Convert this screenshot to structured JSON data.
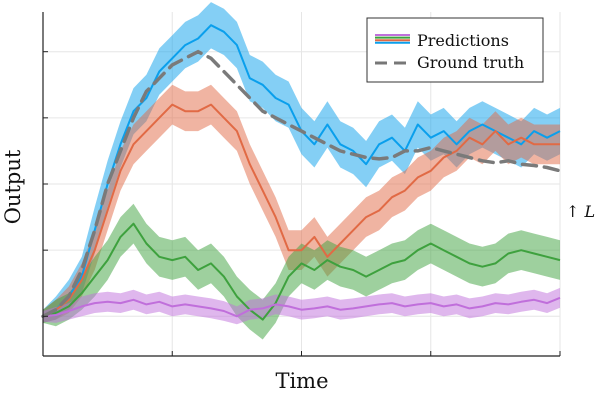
{
  "chart_data": {
    "type": "line",
    "xlabel": "Time",
    "ylabel": "Output",
    "xlim": [
      0,
      40
    ],
    "ylim": [
      -0.6,
      4.6
    ],
    "x_ticks": [
      0,
      10,
      20,
      30,
      40
    ],
    "y_ticks": [
      0,
      1,
      2,
      3,
      4
    ],
    "tick_labels_shown": false,
    "grid": true,
    "legend_position": "top-right",
    "legend": [
      {
        "label": "Predictions",
        "swatch": "multicolor-solid",
        "colors": [
          "#c06fdb",
          "#3ea13e",
          "#e16a45",
          "#0a9fec"
        ]
      },
      {
        "label": "Ground truth",
        "swatch": "dashed",
        "colors": [
          "#777777"
        ]
      }
    ],
    "annotation": {
      "text": "↑ L",
      "side": "right"
    },
    "x": [
      0,
      1,
      2,
      3,
      4,
      5,
      6,
      7,
      8,
      9,
      10,
      11,
      12,
      13,
      14,
      15,
      16,
      17,
      18,
      19,
      20,
      21,
      22,
      23,
      24,
      25,
      26,
      27,
      28,
      29,
      30,
      31,
      32,
      33,
      34,
      35,
      36,
      37,
      38,
      39,
      40
    ],
    "ground_truth": {
      "color": "#7a7a7a",
      "values": [
        0.0,
        0.1,
        0.3,
        0.7,
        1.3,
        2.0,
        2.5,
        3.0,
        3.4,
        3.6,
        3.8,
        3.9,
        4.0,
        3.9,
        3.7,
        3.5,
        3.3,
        3.1,
        3.0,
        2.9,
        2.8,
        2.7,
        2.6,
        2.5,
        2.45,
        2.4,
        2.38,
        2.4,
        2.5,
        2.5,
        2.55,
        2.5,
        2.45,
        2.4,
        2.35,
        2.32,
        2.35,
        2.3,
        2.28,
        2.25,
        2.2
      ]
    },
    "series": [
      {
        "color": "#0a9fec",
        "mean": [
          0.0,
          0.1,
          0.3,
          0.6,
          1.3,
          2.0,
          2.6,
          3.1,
          3.3,
          3.7,
          3.9,
          4.1,
          4.2,
          4.4,
          4.3,
          4.1,
          3.6,
          3.5,
          3.3,
          3.2,
          2.8,
          2.6,
          2.9,
          2.6,
          2.5,
          2.3,
          2.6,
          2.7,
          2.5,
          2.9,
          2.7,
          2.8,
          2.6,
          2.8,
          2.9,
          2.8,
          2.7,
          2.6,
          2.8,
          2.7,
          2.8
        ],
        "lower": [
          -0.1,
          -0.05,
          0.1,
          0.35,
          0.95,
          1.65,
          2.25,
          2.75,
          2.95,
          3.35,
          3.55,
          3.75,
          3.85,
          4.05,
          3.95,
          3.75,
          3.25,
          3.15,
          2.95,
          2.85,
          2.45,
          2.25,
          2.55,
          2.25,
          2.15,
          1.95,
          2.25,
          2.35,
          2.15,
          2.55,
          2.35,
          2.45,
          2.25,
          2.45,
          2.55,
          2.45,
          2.35,
          2.25,
          2.45,
          2.35,
          2.45
        ],
        "upper": [
          0.1,
          0.3,
          0.55,
          0.9,
          1.65,
          2.35,
          2.95,
          3.45,
          3.65,
          4.05,
          4.25,
          4.45,
          4.55,
          4.75,
          4.65,
          4.45,
          3.95,
          3.85,
          3.65,
          3.55,
          3.15,
          2.95,
          3.25,
          2.95,
          2.85,
          2.65,
          2.95,
          3.05,
          2.85,
          3.25,
          3.05,
          3.15,
          2.95,
          3.15,
          3.25,
          3.15,
          3.05,
          2.95,
          3.15,
          3.05,
          3.15
        ]
      },
      {
        "color": "#e16a45",
        "mean": [
          0.0,
          0.1,
          0.25,
          0.55,
          1.0,
          1.6,
          2.2,
          2.6,
          2.8,
          3.0,
          3.2,
          3.1,
          3.1,
          3.2,
          3.0,
          2.8,
          2.3,
          1.9,
          1.5,
          1.0,
          1.0,
          1.2,
          0.9,
          1.1,
          1.3,
          1.5,
          1.6,
          1.8,
          1.9,
          2.1,
          2.2,
          2.4,
          2.5,
          2.7,
          2.6,
          2.8,
          2.6,
          2.7,
          2.6,
          2.6,
          2.6
        ],
        "lower": [
          -0.1,
          -0.05,
          0.05,
          0.3,
          0.7,
          1.3,
          1.9,
          2.3,
          2.5,
          2.7,
          2.9,
          2.8,
          2.8,
          2.9,
          2.7,
          2.5,
          2.0,
          1.6,
          1.2,
          0.7,
          0.7,
          0.9,
          0.6,
          0.8,
          1.0,
          1.2,
          1.3,
          1.5,
          1.6,
          1.8,
          1.9,
          2.1,
          2.2,
          2.4,
          2.3,
          2.5,
          2.3,
          2.4,
          2.3,
          2.3,
          2.3
        ],
        "upper": [
          0.1,
          0.25,
          0.45,
          0.8,
          1.3,
          1.9,
          2.5,
          2.9,
          3.1,
          3.3,
          3.5,
          3.4,
          3.4,
          3.5,
          3.3,
          3.1,
          2.6,
          2.2,
          1.8,
          1.3,
          1.3,
          1.5,
          1.2,
          1.4,
          1.6,
          1.8,
          1.9,
          2.1,
          2.2,
          2.4,
          2.5,
          2.7,
          2.8,
          3.0,
          2.9,
          3.1,
          2.9,
          3.0,
          2.9,
          2.9,
          2.9
        ]
      },
      {
        "color": "#3ea13e",
        "mean": [
          0.0,
          0.05,
          0.15,
          0.35,
          0.6,
          0.85,
          1.2,
          1.4,
          1.1,
          0.9,
          0.85,
          0.9,
          0.7,
          0.8,
          0.6,
          0.3,
          0.1,
          -0.05,
          0.2,
          0.6,
          0.8,
          0.7,
          0.85,
          0.75,
          0.7,
          0.6,
          0.7,
          0.8,
          0.85,
          1.0,
          1.1,
          1.0,
          0.9,
          0.8,
          0.75,
          0.8,
          0.95,
          1.0,
          0.95,
          0.9,
          0.85
        ],
        "lower": [
          -0.1,
          -0.15,
          -0.05,
          0.1,
          0.3,
          0.55,
          0.9,
          1.1,
          0.8,
          0.6,
          0.55,
          0.6,
          0.4,
          0.5,
          0.3,
          0.0,
          -0.2,
          -0.35,
          -0.1,
          0.3,
          0.5,
          0.4,
          0.55,
          0.45,
          0.4,
          0.3,
          0.4,
          0.5,
          0.55,
          0.7,
          0.8,
          0.7,
          0.6,
          0.5,
          0.45,
          0.5,
          0.65,
          0.7,
          0.65,
          0.6,
          0.55
        ],
        "upper": [
          0.1,
          0.25,
          0.35,
          0.6,
          0.9,
          1.15,
          1.5,
          1.7,
          1.4,
          1.2,
          1.15,
          1.2,
          1.0,
          1.1,
          0.9,
          0.6,
          0.4,
          0.25,
          0.5,
          0.9,
          1.1,
          1.0,
          1.15,
          1.05,
          1.0,
          0.9,
          1.0,
          1.1,
          1.15,
          1.3,
          1.4,
          1.3,
          1.2,
          1.1,
          1.05,
          1.1,
          1.25,
          1.3,
          1.25,
          1.2,
          1.15
        ]
      },
      {
        "color": "#c06fdb",
        "mean": [
          0.0,
          0.02,
          0.08,
          0.15,
          0.2,
          0.22,
          0.2,
          0.25,
          0.18,
          0.22,
          0.15,
          0.18,
          0.15,
          0.12,
          0.08,
          0.0,
          0.1,
          0.12,
          0.18,
          0.15,
          0.1,
          0.12,
          0.15,
          0.1,
          0.12,
          0.15,
          0.18,
          0.2,
          0.15,
          0.18,
          0.2,
          0.15,
          0.18,
          0.12,
          0.15,
          0.2,
          0.18,
          0.22,
          0.25,
          0.2,
          0.28
        ],
        "lower": [
          -0.08,
          -0.1,
          -0.05,
          0.0,
          0.05,
          0.07,
          0.05,
          0.1,
          0.03,
          0.07,
          0.0,
          0.03,
          0.0,
          -0.03,
          -0.07,
          -0.12,
          -0.05,
          -0.03,
          0.03,
          0.0,
          -0.05,
          -0.03,
          0.0,
          -0.05,
          -0.03,
          0.0,
          0.03,
          0.05,
          0.0,
          0.03,
          0.05,
          0.0,
          0.03,
          -0.03,
          0.0,
          0.05,
          0.03,
          0.07,
          0.1,
          0.05,
          0.13
        ],
        "upper": [
          0.08,
          0.14,
          0.2,
          0.3,
          0.35,
          0.37,
          0.35,
          0.4,
          0.33,
          0.37,
          0.3,
          0.33,
          0.3,
          0.27,
          0.23,
          0.15,
          0.25,
          0.27,
          0.33,
          0.3,
          0.25,
          0.27,
          0.3,
          0.25,
          0.27,
          0.3,
          0.33,
          0.35,
          0.3,
          0.33,
          0.35,
          0.3,
          0.33,
          0.27,
          0.3,
          0.35,
          0.33,
          0.37,
          0.4,
          0.35,
          0.43
        ]
      }
    ]
  }
}
